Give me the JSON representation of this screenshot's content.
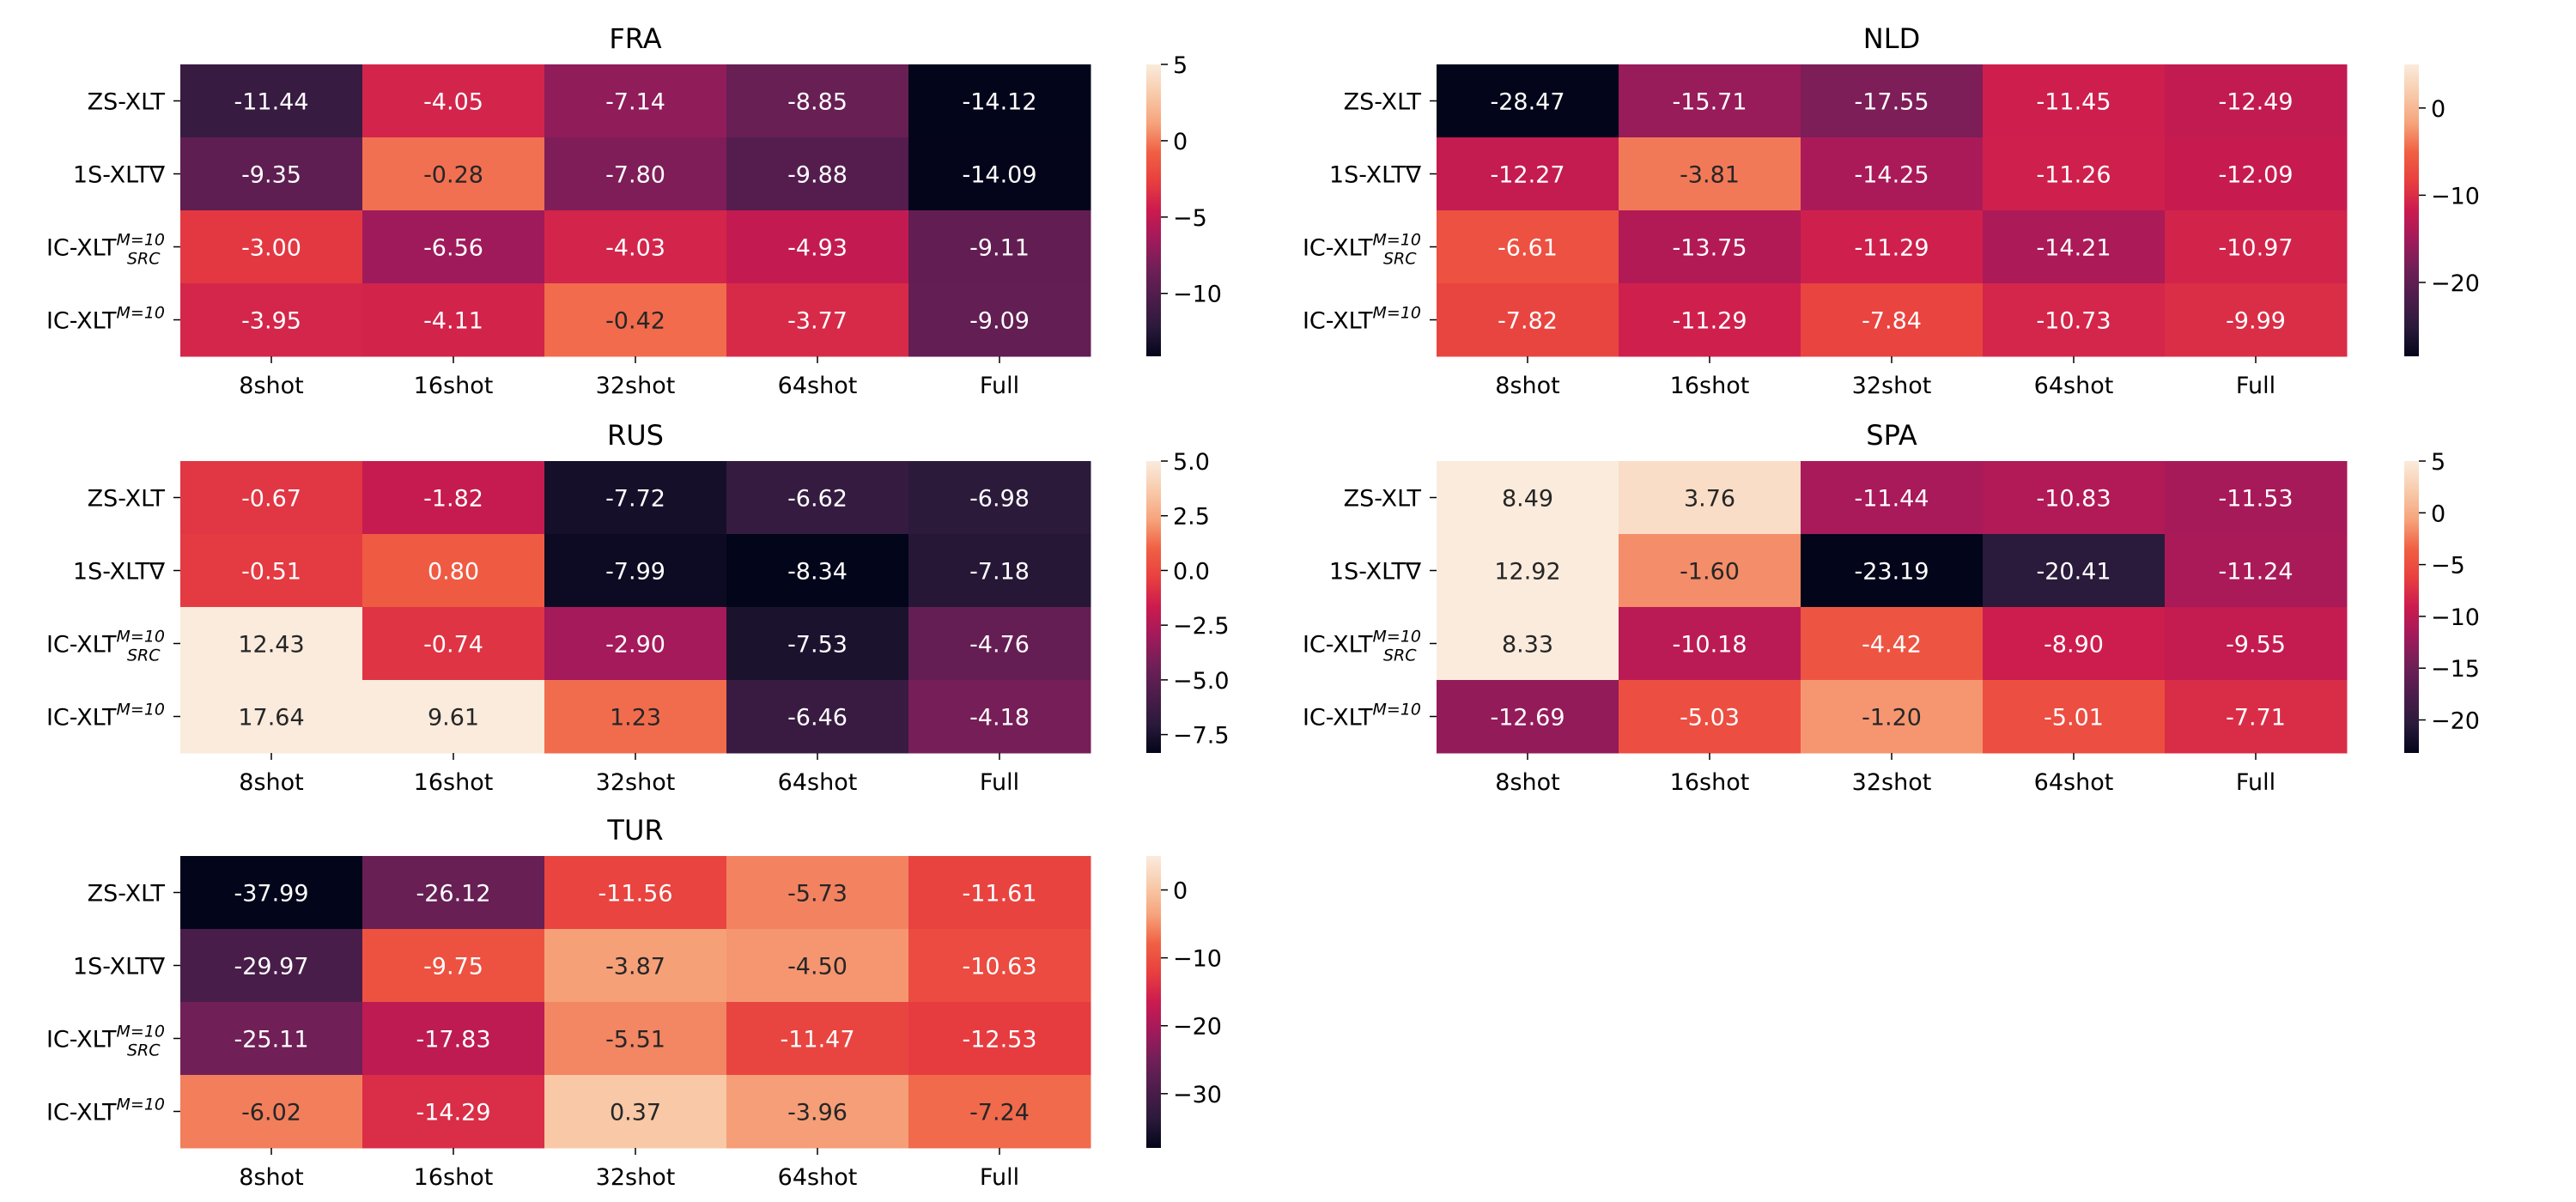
{
  "chart_data": [
    {
      "type": "heatmap",
      "title": "FRA",
      "rows": [
        "ZS-XLT",
        "1S-XLT∇",
        "IC-XLT_SRC^{M=10}",
        "IC-XLT^{M=10}"
      ],
      "columns": [
        "8shot",
        "16shot",
        "32shot",
        "64shot",
        "Full"
      ],
      "values": [
        [
          -11.44,
          -4.05,
          -7.14,
          -8.85,
          -14.12
        ],
        [
          -9.35,
          -0.28,
          -7.8,
          -9.88,
          -14.09
        ],
        [
          -3.0,
          -6.56,
          -4.03,
          -4.93,
          -9.11
        ],
        [
          -3.95,
          -4.11,
          -0.42,
          -3.77,
          -9.09
        ]
      ],
      "vmin": -14.12,
      "vmax": 5,
      "colorbar_ticks": [
        5,
        0,
        -5,
        -10
      ]
    },
    {
      "type": "heatmap",
      "title": "NLD",
      "rows": [
        "ZS-XLT",
        "1S-XLT∇",
        "IC-XLT_SRC^{M=10}",
        "IC-XLT^{M=10}"
      ],
      "columns": [
        "8shot",
        "16shot",
        "32shot",
        "64shot",
        "Full"
      ],
      "values": [
        [
          -28.47,
          -15.71,
          -17.55,
          -11.45,
          -12.49
        ],
        [
          -12.27,
          -3.81,
          -14.25,
          -11.26,
          -12.09
        ],
        [
          -6.61,
          -13.75,
          -11.29,
          -14.21,
          -10.97
        ],
        [
          -7.82,
          -11.29,
          -7.84,
          -10.73,
          -9.99
        ]
      ],
      "vmin": -28.47,
      "vmax": 5,
      "colorbar_ticks": [
        0,
        -10,
        -20
      ]
    },
    {
      "type": "heatmap",
      "title": "RUS",
      "rows": [
        "ZS-XLT",
        "1S-XLT∇",
        "IC-XLT_SRC^{M=10}",
        "IC-XLT^{M=10}"
      ],
      "columns": [
        "8shot",
        "16shot",
        "32shot",
        "64shot",
        "Full"
      ],
      "values": [
        [
          -0.67,
          -1.82,
          -7.72,
          -6.62,
          -6.98
        ],
        [
          -0.51,
          0.8,
          -7.99,
          -8.34,
          -7.18
        ],
        [
          12.43,
          -0.74,
          -2.9,
          -7.53,
          -4.76
        ],
        [
          17.64,
          9.61,
          1.23,
          -6.46,
          -4.18
        ]
      ],
      "vmin": -8.34,
      "vmax": 5,
      "colorbar_ticks": [
        5.0,
        2.5,
        0.0,
        -2.5,
        -5.0,
        -7.5
      ]
    },
    {
      "type": "heatmap",
      "title": "SPA",
      "rows": [
        "ZS-XLT",
        "1S-XLT∇",
        "IC-XLT_SRC^{M=10}",
        "IC-XLT^{M=10}"
      ],
      "columns": [
        "8shot",
        "16shot",
        "32shot",
        "64shot",
        "Full"
      ],
      "values": [
        [
          8.49,
          3.76,
          -11.44,
          -10.83,
          -11.53
        ],
        [
          12.92,
          -1.6,
          -23.19,
          -20.41,
          -11.24
        ],
        [
          8.33,
          -10.18,
          -4.42,
          -8.9,
          -9.55
        ],
        [
          -12.69,
          -5.03,
          -1.2,
          -5.01,
          -7.71
        ]
      ],
      "vmin": -23.19,
      "vmax": 5,
      "colorbar_ticks": [
        5,
        0,
        -5,
        -10,
        -15,
        -20
      ]
    },
    {
      "type": "heatmap",
      "title": "TUR",
      "rows": [
        "ZS-XLT",
        "1S-XLT∇",
        "IC-XLT_SRC^{M=10}",
        "IC-XLT^{M=10}"
      ],
      "columns": [
        "8shot",
        "16shot",
        "32shot",
        "64shot",
        "Full"
      ],
      "values": [
        [
          -37.99,
          -26.12,
          -11.56,
          -5.73,
          -11.61
        ],
        [
          -29.97,
          -9.75,
          -3.87,
          -4.5,
          -10.63
        ],
        [
          -25.11,
          -17.83,
          -5.51,
          -11.47,
          -12.53
        ],
        [
          -6.02,
          -14.29,
          0.37,
          -3.96,
          -7.24
        ]
      ],
      "vmin": -37.99,
      "vmax": 5,
      "colorbar_ticks": [
        0,
        -10,
        -20,
        -30
      ]
    }
  ],
  "colormap": {
    "name": "rocket",
    "stops": [
      "#03051a",
      "#2b1a3b",
      "#4c1d4b",
      "#701f57",
      "#a11a5b",
      "#cb1b4f",
      "#e83f3f",
      "#f06043",
      "#f6a47c",
      "#f8cbab",
      "#faebdd"
    ]
  }
}
